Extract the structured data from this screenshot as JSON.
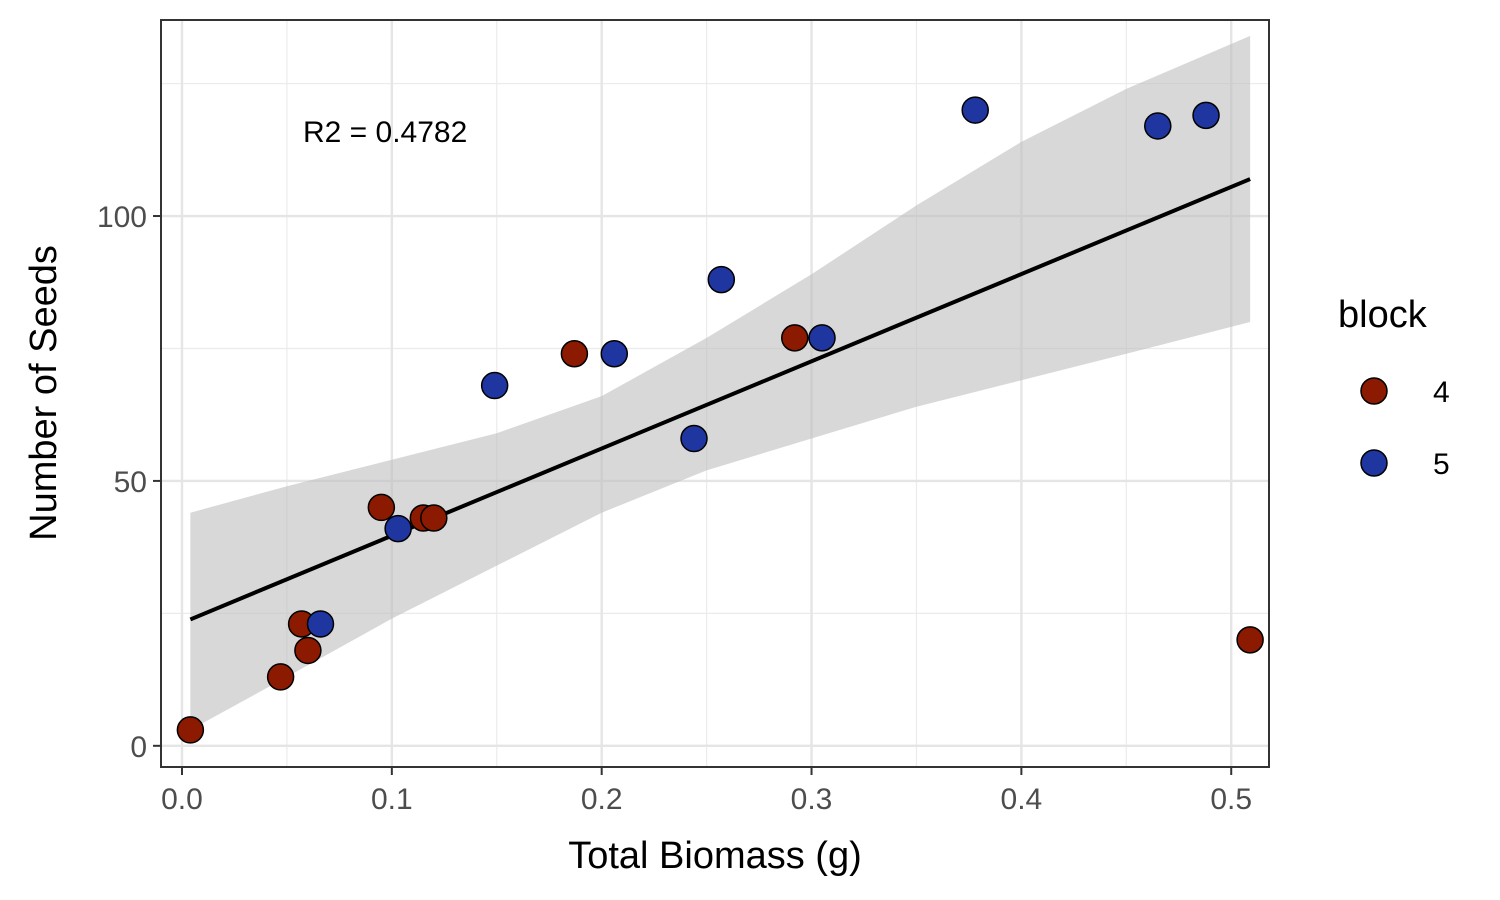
{
  "chart_data": {
    "type": "scatter",
    "xlabel": "Total Biomass (g)",
    "ylabel": "Number of Seeds",
    "xlim": [
      -0.01,
      0.518
    ],
    "ylim": [
      -4,
      137
    ],
    "x_ticks": [
      0.0,
      0.1,
      0.2,
      0.3,
      0.4,
      0.5
    ],
    "x_tick_labels": [
      "0.0",
      "0.1",
      "0.2",
      "0.3",
      "0.4",
      "0.5"
    ],
    "y_ticks": [
      0,
      50,
      100
    ],
    "y_tick_labels": [
      "0",
      "50",
      "100"
    ],
    "grid": true,
    "legend": {
      "title": "block",
      "position": "right",
      "entries": [
        {
          "label": "4",
          "color": "#8b1a00"
        },
        {
          "label": "5",
          "color": "#1f36a0"
        }
      ]
    },
    "annotation": "R2 = 0.4782",
    "series": [
      {
        "name": "4",
        "color": "#8b1a00",
        "points": [
          {
            "x": 0.004,
            "y": 3
          },
          {
            "x": 0.047,
            "y": 13
          },
          {
            "x": 0.057,
            "y": 23
          },
          {
            "x": 0.06,
            "y": 18
          },
          {
            "x": 0.095,
            "y": 45
          },
          {
            "x": 0.115,
            "y": 43
          },
          {
            "x": 0.12,
            "y": 43
          },
          {
            "x": 0.187,
            "y": 74
          },
          {
            "x": 0.292,
            "y": 77
          },
          {
            "x": 0.509,
            "y": 20
          }
        ]
      },
      {
        "name": "5",
        "color": "#1f36a0",
        "points": [
          {
            "x": 0.066,
            "y": 23
          },
          {
            "x": 0.103,
            "y": 41
          },
          {
            "x": 0.149,
            "y": 68
          },
          {
            "x": 0.206,
            "y": 74
          },
          {
            "x": 0.244,
            "y": 58
          },
          {
            "x": 0.257,
            "y": 88
          },
          {
            "x": 0.305,
            "y": 77
          },
          {
            "x": 0.378,
            "y": 120
          },
          {
            "x": 0.465,
            "y": 117
          },
          {
            "x": 0.488,
            "y": 119
          }
        ]
      }
    ],
    "regression": {
      "x_start": 0.004,
      "x_end": 0.509,
      "intercept": 23.2,
      "slope": 164.6,
      "color": "#000000",
      "ci_band": {
        "color": "#bebebe",
        "x": [
          0.004,
          0.05,
          0.1,
          0.15,
          0.2,
          0.25,
          0.3,
          0.35,
          0.4,
          0.45,
          0.509
        ],
        "lower": [
          3,
          13,
          24,
          34,
          44,
          52,
          58,
          64,
          69,
          74,
          80
        ],
        "upper": [
          44,
          49,
          54,
          59,
          66,
          77,
          89,
          102,
          114,
          124,
          134
        ]
      }
    }
  }
}
